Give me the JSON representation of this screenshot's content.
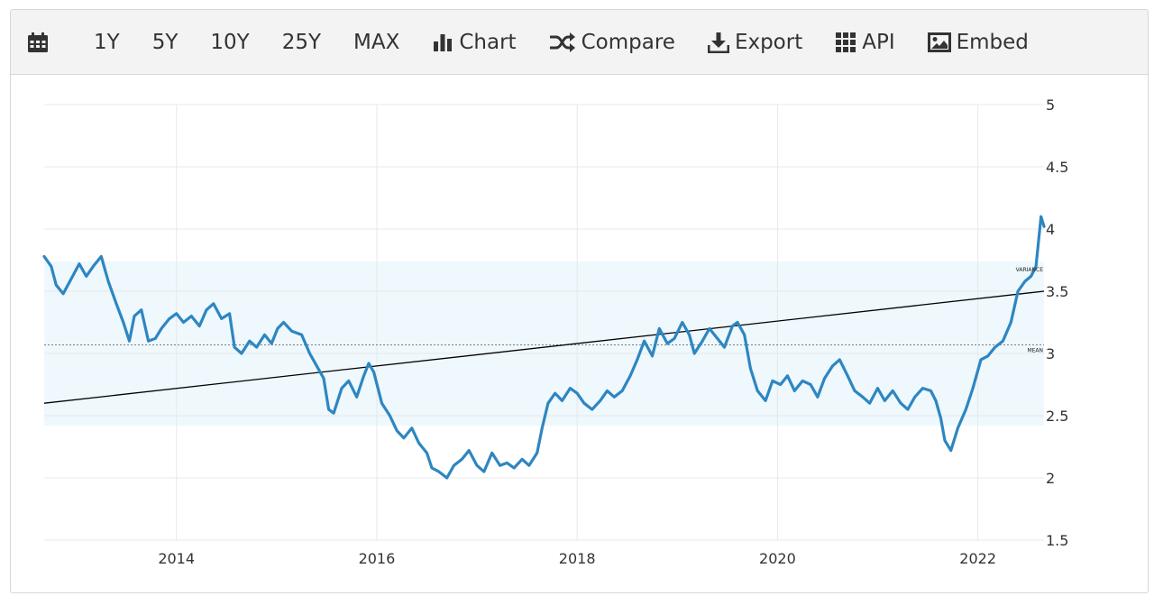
{
  "toolbar": {
    "items": [
      {
        "name": "calendar-button",
        "icon": "calendar-icon",
        "label": ""
      },
      {
        "name": "range-1y-button",
        "label": "1Y"
      },
      {
        "name": "range-5y-button",
        "label": "5Y"
      },
      {
        "name": "range-10y-button",
        "label": "10Y"
      },
      {
        "name": "range-25y-button",
        "label": "25Y"
      },
      {
        "name": "range-max-button",
        "label": "MAX"
      },
      {
        "name": "chart-button",
        "icon": "bar-chart-icon",
        "label": "Chart"
      },
      {
        "name": "compare-button",
        "icon": "shuffle-icon",
        "label": "Compare"
      },
      {
        "name": "export-button",
        "icon": "download-icon",
        "label": "Export"
      },
      {
        "name": "api-button",
        "icon": "grid-icon",
        "label": "API"
      },
      {
        "name": "embed-button",
        "icon": "image-icon",
        "label": "Embed"
      }
    ]
  },
  "colors": {
    "series": "#2e86c1",
    "band": "#eef8fd",
    "grid": "#e8e8e8",
    "trend": "#000000",
    "text": "#333333"
  },
  "chart_data": {
    "type": "line",
    "x_tick_labels": [
      "2014",
      "2016",
      "2018",
      "2020",
      "2022"
    ],
    "y_tick_labels": [
      "1.5",
      "2",
      "2.5",
      "3",
      "3.5",
      "4",
      "4.5",
      "5"
    ],
    "xlim": [
      2012.73,
      2022.71
    ],
    "ylim": [
      1.5,
      5
    ],
    "grid": true,
    "annotations": {
      "band_label": "VARIANCE",
      "mean_label": "MEAN"
    },
    "band": [
      2.42,
      3.74
    ],
    "mean": 3.07,
    "trend_line": {
      "start": [
        2012.73,
        2.6
      ],
      "end": [
        2022.71,
        3.5
      ]
    },
    "series": [
      {
        "name": "",
        "points": [
          [
            2012.73,
            3.78
          ],
          [
            2012.8,
            3.7
          ],
          [
            2012.85,
            3.55
          ],
          [
            2012.92,
            3.48
          ],
          [
            2013.0,
            3.6
          ],
          [
            2013.08,
            3.72
          ],
          [
            2013.15,
            3.62
          ],
          [
            2013.22,
            3.7
          ],
          [
            2013.3,
            3.78
          ],
          [
            2013.37,
            3.58
          ],
          [
            2013.45,
            3.4
          ],
          [
            2013.52,
            3.25
          ],
          [
            2013.58,
            3.1
          ],
          [
            2013.63,
            3.3
          ],
          [
            2013.7,
            3.35
          ],
          [
            2013.77,
            3.1
          ],
          [
            2013.84,
            3.12
          ],
          [
            2013.9,
            3.2
          ],
          [
            2013.98,
            3.28
          ],
          [
            2014.05,
            3.32
          ],
          [
            2014.12,
            3.25
          ],
          [
            2014.2,
            3.3
          ],
          [
            2014.28,
            3.22
          ],
          [
            2014.35,
            3.35
          ],
          [
            2014.42,
            3.4
          ],
          [
            2014.5,
            3.28
          ],
          [
            2014.58,
            3.32
          ],
          [
            2014.63,
            3.05
          ],
          [
            2014.7,
            3.0
          ],
          [
            2014.78,
            3.1
          ],
          [
            2014.85,
            3.05
          ],
          [
            2014.93,
            3.15
          ],
          [
            2015.0,
            3.08
          ],
          [
            2015.06,
            3.2
          ],
          [
            2015.12,
            3.25
          ],
          [
            2015.2,
            3.18
          ],
          [
            2015.3,
            3.15
          ],
          [
            2015.38,
            3.0
          ],
          [
            2015.45,
            2.9
          ],
          [
            2015.52,
            2.8
          ],
          [
            2015.57,
            2.55
          ],
          [
            2015.62,
            2.52
          ],
          [
            2015.7,
            2.72
          ],
          [
            2015.77,
            2.78
          ],
          [
            2015.85,
            2.65
          ],
          [
            2015.92,
            2.82
          ],
          [
            2015.97,
            2.92
          ],
          [
            2016.02,
            2.85
          ],
          [
            2016.1,
            2.6
          ],
          [
            2016.18,
            2.5
          ],
          [
            2016.25,
            2.38
          ],
          [
            2016.32,
            2.32
          ],
          [
            2016.4,
            2.4
          ],
          [
            2016.47,
            2.28
          ],
          [
            2016.55,
            2.2
          ],
          [
            2016.6,
            2.08
          ],
          [
            2016.67,
            2.05
          ],
          [
            2016.75,
            2.0
          ],
          [
            2016.82,
            2.1
          ],
          [
            2016.9,
            2.15
          ],
          [
            2016.97,
            2.22
          ],
          [
            2017.05,
            2.1
          ],
          [
            2017.12,
            2.05
          ],
          [
            2017.2,
            2.2
          ],
          [
            2017.28,
            2.1
          ],
          [
            2017.35,
            2.12
          ],
          [
            2017.42,
            2.08
          ],
          [
            2017.5,
            2.15
          ],
          [
            2017.57,
            2.1
          ],
          [
            2017.65,
            2.2
          ],
          [
            2017.7,
            2.4
          ],
          [
            2017.76,
            2.6
          ],
          [
            2017.83,
            2.68
          ],
          [
            2017.9,
            2.62
          ],
          [
            2017.98,
            2.72
          ],
          [
            2018.05,
            2.68
          ],
          [
            2018.12,
            2.6
          ],
          [
            2018.2,
            2.55
          ],
          [
            2018.28,
            2.62
          ],
          [
            2018.35,
            2.7
          ],
          [
            2018.42,
            2.65
          ],
          [
            2018.5,
            2.7
          ],
          [
            2018.58,
            2.82
          ],
          [
            2018.65,
            2.95
          ],
          [
            2018.72,
            3.1
          ],
          [
            2018.8,
            2.98
          ],
          [
            2018.87,
            3.2
          ],
          [
            2018.95,
            3.08
          ],
          [
            2019.02,
            3.12
          ],
          [
            2019.1,
            3.25
          ],
          [
            2019.17,
            3.15
          ],
          [
            2019.22,
            3.0
          ],
          [
            2019.3,
            3.1
          ],
          [
            2019.37,
            3.2
          ],
          [
            2019.45,
            3.12
          ],
          [
            2019.52,
            3.05
          ],
          [
            2019.6,
            3.22
          ],
          [
            2019.65,
            3.25
          ],
          [
            2019.72,
            3.15
          ],
          [
            2019.78,
            2.88
          ],
          [
            2019.85,
            2.7
          ],
          [
            2019.93,
            2.62
          ],
          [
            2020.0,
            2.78
          ],
          [
            2020.08,
            2.75
          ],
          [
            2020.15,
            2.82
          ],
          [
            2020.22,
            2.7
          ],
          [
            2020.3,
            2.78
          ],
          [
            2020.38,
            2.75
          ],
          [
            2020.45,
            2.65
          ],
          [
            2020.52,
            2.8
          ],
          [
            2020.6,
            2.9
          ],
          [
            2020.67,
            2.95
          ],
          [
            2020.75,
            2.82
          ],
          [
            2020.82,
            2.7
          ],
          [
            2020.9,
            2.65
          ],
          [
            2020.97,
            2.6
          ],
          [
            2021.05,
            2.72
          ],
          [
            2021.12,
            2.62
          ],
          [
            2021.2,
            2.7
          ],
          [
            2021.28,
            2.6
          ],
          [
            2021.35,
            2.55
          ],
          [
            2021.42,
            2.65
          ],
          [
            2021.5,
            2.72
          ],
          [
            2021.58,
            2.7
          ],
          [
            2021.63,
            2.62
          ],
          [
            2021.68,
            2.48
          ],
          [
            2021.72,
            2.3
          ],
          [
            2021.78,
            2.22
          ],
          [
            2021.85,
            2.4
          ],
          [
            2021.93,
            2.55
          ],
          [
            2022.0,
            2.72
          ],
          [
            2022.08,
            2.95
          ],
          [
            2022.15,
            2.98
          ],
          [
            2022.22,
            3.05
          ],
          [
            2022.3,
            3.1
          ],
          [
            2022.38,
            3.25
          ],
          [
            2022.45,
            3.5
          ],
          [
            2022.52,
            3.58
          ],
          [
            2022.58,
            3.62
          ],
          [
            2022.63,
            3.7
          ],
          [
            2022.68,
            4.1
          ],
          [
            2022.71,
            4.02
          ]
        ]
      }
    ]
  }
}
